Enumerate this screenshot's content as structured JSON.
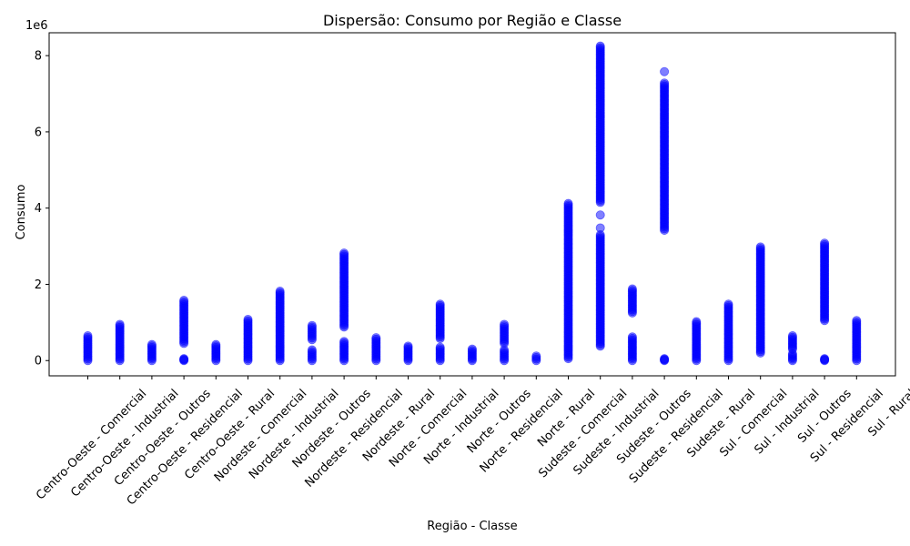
{
  "chart_data": {
    "type": "scatter",
    "title": "Dispersão: Consumo por Região e Classe",
    "xlabel": "Região - Classe",
    "ylabel": "Consumo",
    "y_offset_label": "1e6",
    "y_unit_multiplier": 1000000,
    "ylim": [
      -0.4,
      8.6
    ],
    "yticks": [
      0,
      2,
      4,
      6,
      8
    ],
    "grid": false,
    "marker_color": "#0000ff",
    "marker_opacity": 0.5,
    "categories": [
      "Centro-Oeste - Comercial",
      "Centro-Oeste - Industrial",
      "Centro-Oeste - Outros",
      "Centro-Oeste - Residencial",
      "Centro-Oeste - Rural",
      "Nordeste - Comercial",
      "Nordeste - Industrial",
      "Nordeste - Outros",
      "Nordeste - Residencial",
      "Nordeste - Rural",
      "Norte - Comercial",
      "Norte - Industrial",
      "Norte - Outros",
      "Norte - Residencial",
      "Norte - Rural",
      "Sudeste - Comercial",
      "Sudeste - Industrial",
      "Sudeste - Outros",
      "Sudeste - Residencial",
      "Sudeste - Rural",
      "Sul - Comercial",
      "Sul - Industrial",
      "Sul - Outros",
      "Sul - Residencial",
      "Sul - Rural"
    ],
    "ranges_in_millions": [
      [
        [
          0.0,
          0.65
        ]
      ],
      [
        [
          0.0,
          0.95
        ]
      ],
      [
        [
          0.0,
          0.42
        ]
      ],
      [
        [
          0.0,
          0.05
        ],
        [
          0.45,
          1.58
        ]
      ],
      [
        [
          0.0,
          0.42
        ]
      ],
      [
        [
          0.0,
          1.08
        ]
      ],
      [
        [
          0.0,
          1.82
        ]
      ],
      [
        [
          0.0,
          0.28
        ],
        [
          0.55,
          0.92
        ]
      ],
      [
        [
          0.0,
          0.5
        ],
        [
          0.88,
          2.82
        ]
      ],
      [
        [
          0.0,
          0.6
        ]
      ],
      [
        [
          0.0,
          0.38
        ]
      ],
      [
        [
          0.0,
          0.35
        ],
        [
          0.58,
          1.48
        ]
      ],
      [
        [
          0.0,
          0.3
        ]
      ],
      [
        [
          0.0,
          0.28
        ],
        [
          0.45,
          0.95
        ]
      ],
      [
        [
          0.0,
          0.12
        ]
      ],
      [
        [
          0.05,
          4.12
        ]
      ],
      [
        [
          0.38,
          3.3
        ],
        [
          4.15,
          8.25
        ]
      ],
      [
        [
          0.0,
          0.62
        ],
        [
          1.25,
          1.88
        ]
      ],
      [
        [
          0.0,
          0.05
        ],
        [
          3.42,
          7.28
        ]
      ],
      [
        [
          0.0,
          1.02
        ]
      ],
      [
        [
          0.0,
          1.48
        ]
      ],
      [
        [
          0.2,
          2.98
        ]
      ],
      [
        [
          0.0,
          0.18
        ],
        [
          0.3,
          0.65
        ]
      ],
      [
        [
          0.0,
          0.05
        ],
        [
          1.05,
          3.08
        ]
      ],
      [
        [
          0.0,
          1.05
        ]
      ]
    ],
    "isolated_points_in_millions": [
      {
        "category": "Sudeste - Industrial",
        "y": 3.48
      },
      {
        "category": "Sudeste - Industrial",
        "y": 3.82
      },
      {
        "category": "Sudeste - Residencial",
        "y": 7.58
      }
    ]
  }
}
